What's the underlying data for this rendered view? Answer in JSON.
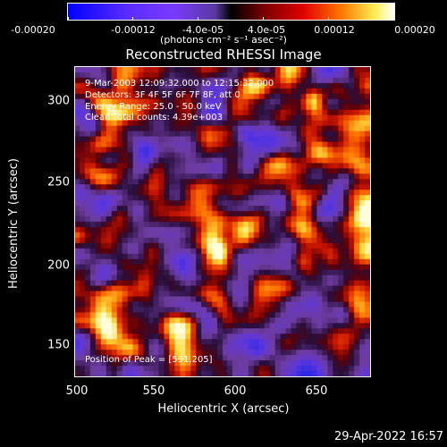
{
  "colorbar": {
    "ticks": [
      "-0.00020",
      "-0.00012",
      "-4.0e-05",
      "4.0e-05",
      "0.00012",
      "0.00020"
    ],
    "units": "(photons cm⁻² s⁻¹ asec⁻²)"
  },
  "title": "Reconstructed RHESSI Image",
  "overlay": {
    "time": "9-Mar-2003 12:09:32.000 to 12:15:32.000",
    "detectors": "Detectors: 3F 4F 5F 6F 7F 8F, att 0",
    "energy": "Energy Range: 25.0 - 50.0 keV",
    "method": "Clean    Total counts: 4.39e+003",
    "peak": "Position of Peak = [591,205]"
  },
  "axes": {
    "xlabel": "Heliocentric X (arcsec)",
    "ylabel": "Heliocentric Y (arcsec)",
    "xticks": [
      "500",
      "550",
      "600",
      "650"
    ],
    "yticks": [
      "300",
      "250",
      "200",
      "150"
    ]
  },
  "timestamp": "29-Apr-2022 16:57",
  "colors": {
    "background": "#000000",
    "foreground": "#ffffff"
  }
}
